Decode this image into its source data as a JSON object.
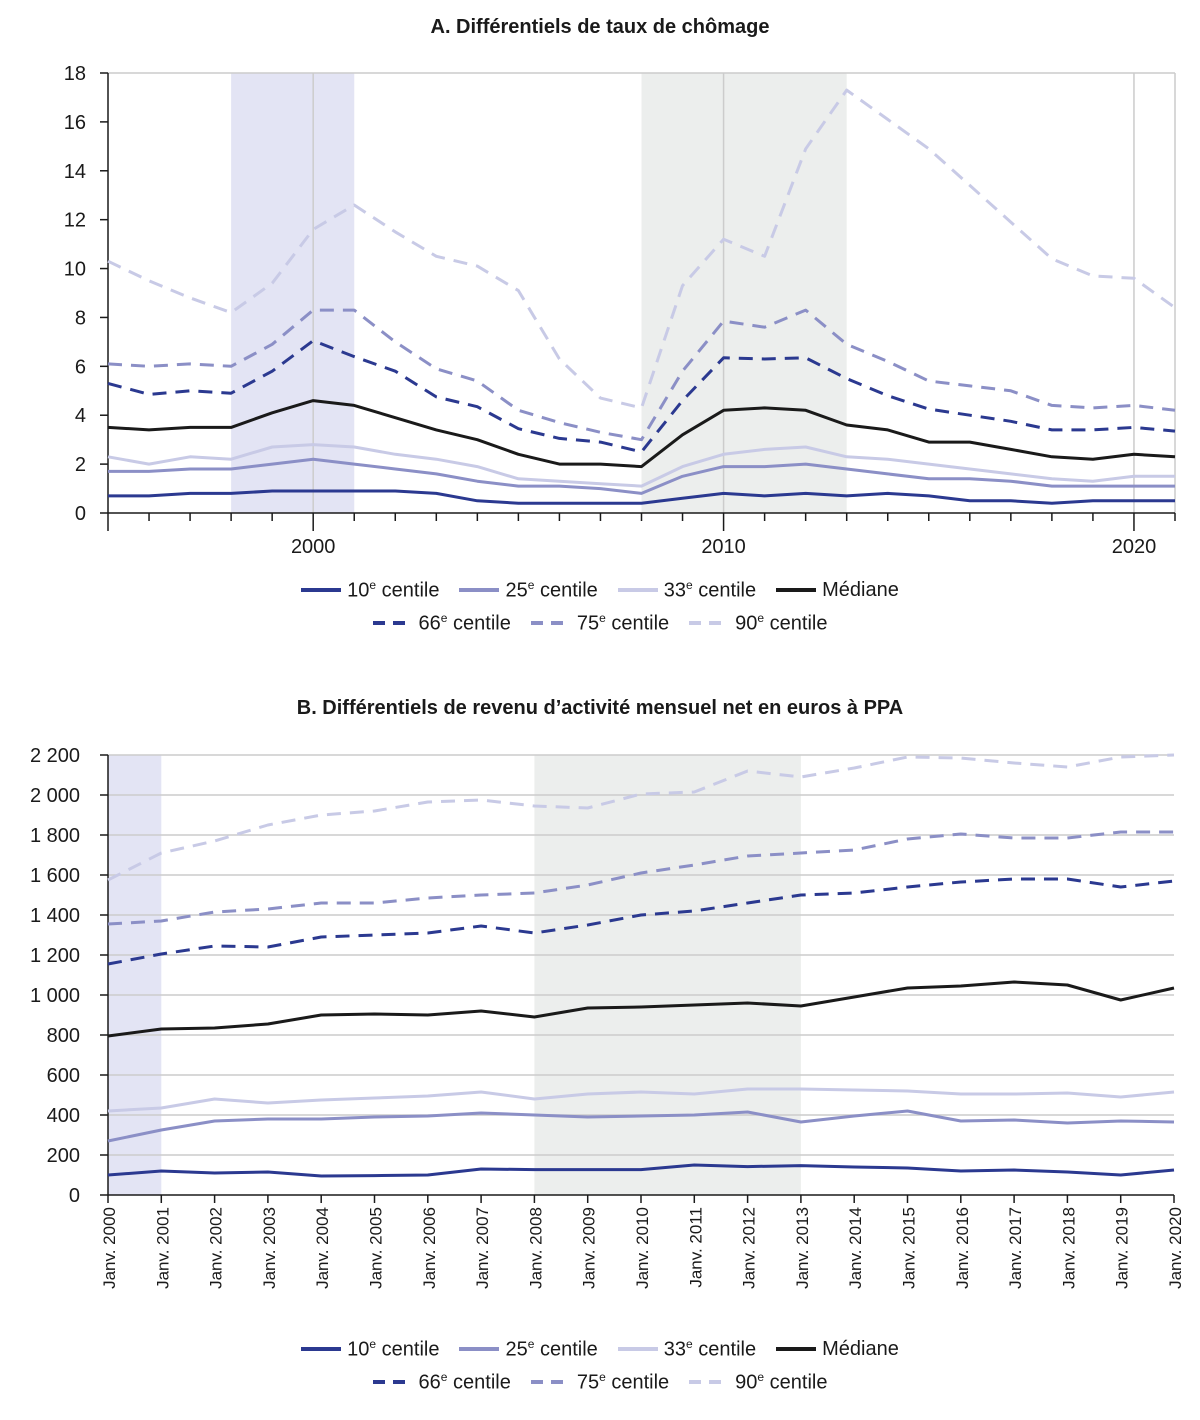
{
  "colors": {
    "p10": "#2b3990",
    "p25": "#8b8fc6",
    "p33": "#c8cae6",
    "med": "#1a1a1a",
    "p66": "#2b3990",
    "p75": "#8b8fc6",
    "p90": "#c8cae6",
    "shadeA": "#e3e4f4",
    "shadeB": "#eceeed",
    "grid": "#cccccc",
    "axis": "#1a1a1a"
  },
  "legend": [
    {
      "key": "p10",
      "ordinal": "10",
      "suffix": "e",
      "text": " centile",
      "dashed": false
    },
    {
      "key": "p25",
      "ordinal": "25",
      "suffix": "e",
      "text": " centile",
      "dashed": false
    },
    {
      "key": "p33",
      "ordinal": "33",
      "suffix": "e",
      "text": " centile",
      "dashed": false
    },
    {
      "key": "med",
      "ordinal": "",
      "suffix": "",
      "text": "Médiane",
      "dashed": false
    },
    {
      "key": "p66",
      "ordinal": "66",
      "suffix": "e",
      "text": " centile",
      "dashed": true
    },
    {
      "key": "p75",
      "ordinal": "75",
      "suffix": "e",
      "text": " centile",
      "dashed": true
    },
    {
      "key": "p90",
      "ordinal": "90",
      "suffix": "e",
      "text": " centile",
      "dashed": true
    }
  ],
  "chart_data": [
    {
      "type": "line",
      "title": "A.  Différentiels de taux de chômage",
      "xlabel": "",
      "ylabel": "",
      "xlim": [
        1995,
        2021
      ],
      "ylim": [
        0,
        18
      ],
      "yticks": [
        0,
        2,
        4,
        6,
        8,
        10,
        12,
        14,
        16,
        18
      ],
      "xticks": [
        2000,
        2010,
        2020
      ],
      "xtick_labels": [
        "2000",
        "2010",
        "2020"
      ],
      "shaded_periods": [
        [
          1998,
          2001
        ],
        [
          2008,
          2013
        ]
      ],
      "x": [
        1995,
        1996,
        1997,
        1998,
        1999,
        2000,
        2001,
        2002,
        2003,
        2004,
        2005,
        2006,
        2007,
        2008,
        2009,
        2010,
        2011,
        2012,
        2013,
        2014,
        2015,
        2016,
        2017,
        2018,
        2019,
        2020,
        2021
      ],
      "series": [
        {
          "key": "p10",
          "values": [
            0.7,
            0.7,
            0.8,
            0.8,
            0.9,
            0.9,
            0.9,
            0.9,
            0.8,
            0.5,
            0.4,
            0.4,
            0.4,
            0.4,
            0.6,
            0.8,
            0.7,
            0.8,
            0.7,
            0.8,
            0.7,
            0.5,
            0.5,
            0.4,
            0.5,
            0.5,
            0.5
          ]
        },
        {
          "key": "p25",
          "values": [
            1.7,
            1.7,
            1.8,
            1.8,
            2.0,
            2.2,
            2.0,
            1.8,
            1.6,
            1.3,
            1.1,
            1.1,
            1.0,
            0.8,
            1.5,
            1.9,
            1.9,
            2.0,
            1.8,
            1.6,
            1.4,
            1.4,
            1.3,
            1.1,
            1.1,
            1.1,
            1.1
          ]
        },
        {
          "key": "p33",
          "values": [
            2.3,
            2.0,
            2.3,
            2.2,
            2.7,
            2.8,
            2.7,
            2.4,
            2.2,
            1.9,
            1.4,
            1.3,
            1.2,
            1.1,
            1.9,
            2.4,
            2.6,
            2.7,
            2.3,
            2.2,
            2.0,
            1.8,
            1.6,
            1.4,
            1.3,
            1.5,
            1.5
          ]
        },
        {
          "key": "med",
          "values": [
            3.5,
            3.4,
            3.5,
            3.5,
            4.1,
            4.6,
            4.4,
            3.9,
            3.4,
            3.0,
            2.4,
            2.0,
            2.0,
            1.9,
            3.2,
            4.2,
            4.3,
            4.2,
            3.6,
            3.4,
            2.9,
            2.9,
            2.6,
            2.3,
            2.2,
            2.4,
            2.3
          ]
        },
        {
          "key": "p66",
          "values": [
            5.3,
            4.85,
            5.0,
            4.9,
            5.8,
            7.05,
            6.4,
            5.8,
            4.75,
            4.35,
            3.45,
            3.05,
            2.9,
            2.5,
            4.6,
            6.35,
            6.3,
            6.35,
            5.5,
            4.8,
            4.25,
            4.0,
            3.75,
            3.4,
            3.4,
            3.5,
            3.35
          ]
        },
        {
          "key": "p75",
          "values": [
            6.1,
            6.0,
            6.1,
            6.0,
            6.9,
            8.3,
            8.3,
            7.0,
            5.9,
            5.4,
            4.2,
            3.7,
            3.3,
            3.0,
            5.8,
            7.85,
            7.6,
            8.3,
            6.9,
            6.2,
            5.4,
            5.2,
            5.0,
            4.4,
            4.3,
            4.4,
            4.2
          ]
        },
        {
          "key": "p90",
          "values": [
            10.3,
            9.5,
            8.8,
            8.2,
            9.4,
            11.6,
            12.6,
            11.5,
            10.5,
            10.1,
            9.1,
            6.3,
            4.7,
            4.3,
            9.3,
            11.2,
            10.5,
            14.9,
            17.3,
            16.1,
            14.9,
            13.4,
            11.9,
            10.4,
            9.7,
            9.6,
            8.4
          ]
        }
      ]
    },
    {
      "type": "line",
      "title": "B.  Différentiels de revenu d’activité mensuel net en euros à PPA",
      "xlabel": "",
      "ylabel": "",
      "ylim": [
        0,
        2200
      ],
      "yticks": [
        0,
        200,
        400,
        600,
        800,
        1000,
        1200,
        1400,
        1600,
        1800,
        2000,
        2200
      ],
      "ytick_labels": [
        "0",
        "200",
        "400",
        "600",
        "800",
        "1 000",
        "1 200",
        "1 400",
        "1 600",
        "1 800",
        "2 000",
        "2 200"
      ],
      "categories": [
        "Janv. 2000",
        "Janv. 2001",
        "Janv. 2002",
        "Janv. 2003",
        "Janv. 2004",
        "Janv. 2005",
        "Janv. 2006",
        "Janv. 2007",
        "Janv. 2008",
        "Janv. 2009",
        "Janv. 2010",
        "Janv. 2011",
        "Janv. 2012",
        "Janv. 2013",
        "Janv. 2014",
        "Janv. 2015",
        "Janv. 2016",
        "Janv. 2017",
        "Janv. 2018",
        "Janv. 2019",
        "Janv. 2020"
      ],
      "shaded_periods": [
        [
          "Janv. 2000",
          "Janv. 2001"
        ],
        [
          "Janv. 2008",
          "Janv. 2013"
        ]
      ],
      "series": [
        {
          "key": "p10",
          "values": [
            100,
            120,
            110,
            115,
            95,
            97,
            100,
            130,
            127,
            127,
            127,
            150,
            142,
            147,
            140,
            135,
            120,
            125,
            115,
            100,
            125
          ]
        },
        {
          "key": "p25",
          "values": [
            270,
            325,
            370,
            380,
            380,
            390,
            395,
            410,
            400,
            390,
            395,
            400,
            415,
            365,
            395,
            420,
            370,
            375,
            360,
            370,
            365
          ]
        },
        {
          "key": "p33",
          "values": [
            420,
            435,
            480,
            460,
            475,
            485,
            495,
            515,
            480,
            505,
            515,
            505,
            530,
            530,
            525,
            520,
            505,
            505,
            510,
            490,
            515
          ]
        },
        {
          "key": "med",
          "values": [
            795,
            830,
            835,
            855,
            900,
            905,
            900,
            920,
            890,
            935,
            940,
            950,
            960,
            945,
            990,
            1035,
            1045,
            1065,
            1050,
            975,
            1035
          ]
        },
        {
          "key": "p66",
          "values": [
            1155,
            1205,
            1245,
            1240,
            1290,
            1300,
            1310,
            1345,
            1310,
            1350,
            1400,
            1420,
            1460,
            1500,
            1510,
            1540,
            1565,
            1580,
            1580,
            1540,
            1570
          ]
        },
        {
          "key": "p75",
          "values": [
            1355,
            1370,
            1415,
            1430,
            1460,
            1460,
            1485,
            1500,
            1510,
            1550,
            1610,
            1650,
            1695,
            1710,
            1725,
            1780,
            1805,
            1785,
            1785,
            1815,
            1815
          ]
        },
        {
          "key": "p90",
          "values": [
            1575,
            1710,
            1770,
            1850,
            1900,
            1920,
            1965,
            1975,
            1945,
            1935,
            2005,
            2015,
            2120,
            2090,
            2135,
            2190,
            2185,
            2160,
            2140,
            2190,
            2200
          ]
        }
      ]
    }
  ]
}
